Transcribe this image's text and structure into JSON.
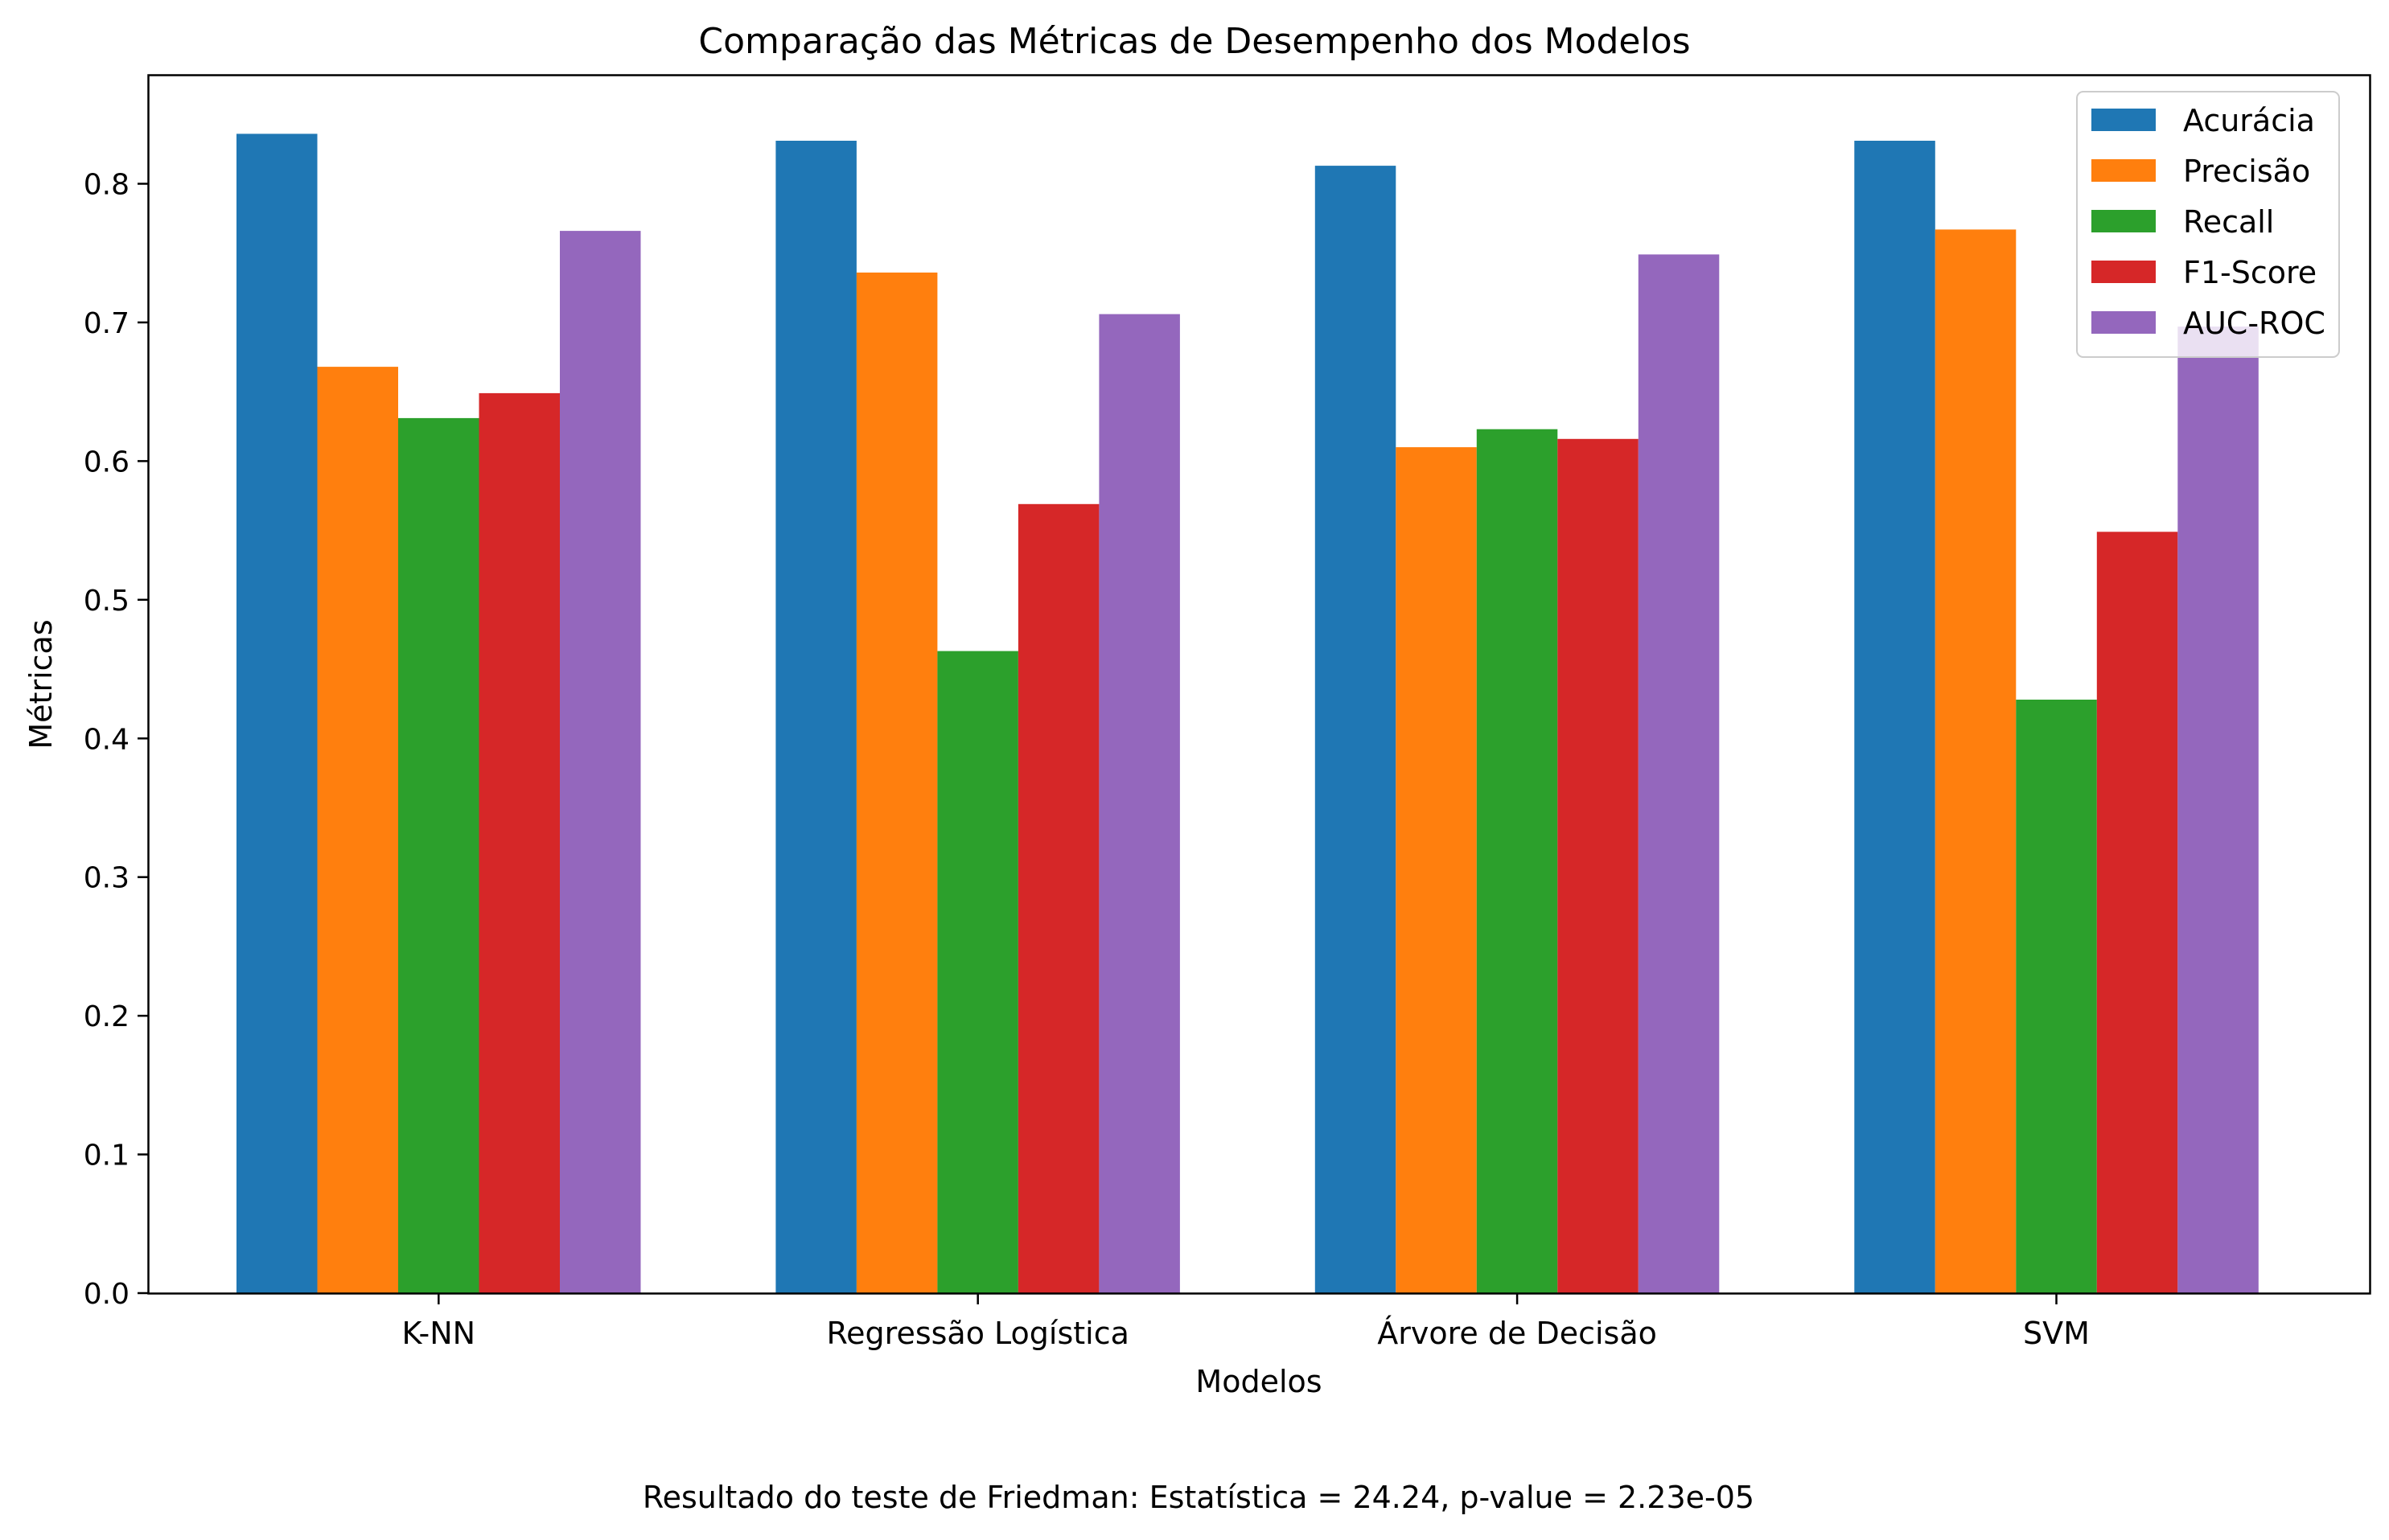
{
  "chart_data": {
    "type": "bar",
    "title": "Comparação das Métricas de Desempenho dos Modelos",
    "xlabel": "Modelos",
    "ylabel": "Métricas",
    "ylim": [
      0,
      0.878
    ],
    "yticks": [
      0.0,
      0.1,
      0.2,
      0.3,
      0.4,
      0.5,
      0.6,
      0.7,
      0.8
    ],
    "ytick_labels": [
      "0.0",
      "0.1",
      "0.2",
      "0.3",
      "0.4",
      "0.5",
      "0.6",
      "0.7",
      "0.8"
    ],
    "categories": [
      "K-NN",
      "Regressão Logística",
      "Árvore de Decisão",
      "SVM"
    ],
    "series": [
      {
        "name": "Acurácia",
        "color": "#1f77b4",
        "values": [
          0.836,
          0.831,
          0.813,
          0.831
        ]
      },
      {
        "name": "Precisão",
        "color": "#ff7f0e",
        "values": [
          0.668,
          0.736,
          0.61,
          0.767
        ]
      },
      {
        "name": "Recall",
        "color": "#2ca02c",
        "values": [
          0.631,
          0.463,
          0.623,
          0.428
        ]
      },
      {
        "name": "F1-Score",
        "color": "#d62728",
        "values": [
          0.649,
          0.569,
          0.616,
          0.549
        ]
      },
      {
        "name": "AUC-ROC",
        "color": "#9467bd",
        "values": [
          0.766,
          0.706,
          0.749,
          0.697
        ]
      }
    ],
    "grid": false,
    "legend_position": "top-right"
  },
  "footnote": "Resultado do teste de Friedman: Estatística = 24.24, p-value = 2.23e-05"
}
